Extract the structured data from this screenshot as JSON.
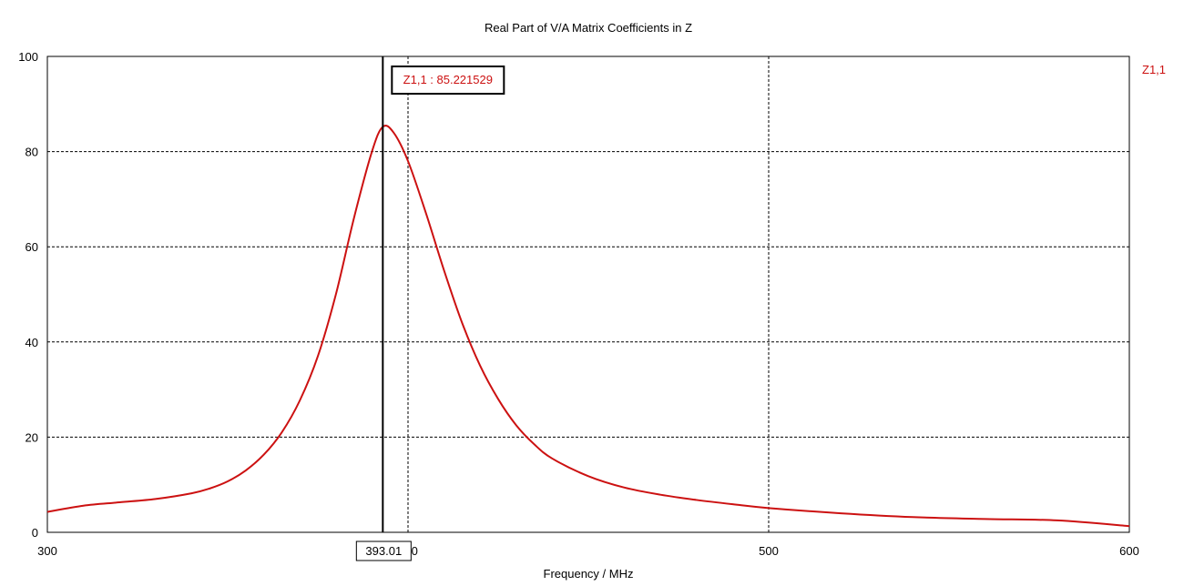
{
  "chart_data": {
    "type": "line",
    "title": "Real Part of V/A Matrix Coefficients in Z",
    "xlabel": "Frequency / MHz",
    "ylabel": "",
    "xlim": [
      300,
      600
    ],
    "ylim": [
      0,
      100
    ],
    "x_ticks": [
      "300",
      "400",
      "500",
      "600"
    ],
    "y_ticks": [
      "0",
      "20",
      "40",
      "60",
      "80",
      "100"
    ],
    "grid": true,
    "legend_position": "right",
    "series": [
      {
        "name": "Z1,1",
        "color": "#cc1111",
        "x": [
          300,
          310,
          320,
          330,
          340,
          345,
          350,
          355,
          360,
          365,
          370,
          375,
          380,
          385,
          390,
          393,
          396,
          400,
          405,
          410,
          415,
          420,
          425,
          430,
          435,
          440,
          450,
          460,
          470,
          480,
          490,
          500,
          520,
          540,
          560,
          580,
          600
        ],
        "y": [
          4.3,
          5.6,
          6.3,
          7.0,
          8.2,
          9.2,
          10.7,
          13.0,
          16.3,
          21.0,
          27.7,
          37.0,
          50.0,
          66.0,
          80.0,
          85.2,
          84.0,
          78.0,
          67.0,
          55.0,
          44.0,
          35.0,
          28.0,
          22.5,
          18.5,
          15.5,
          11.8,
          9.4,
          7.9,
          6.8,
          5.9,
          5.1,
          4.0,
          3.2,
          2.8,
          2.5,
          1.3
        ]
      }
    ],
    "marker": {
      "x_label": "393.01",
      "x": 393.01,
      "readout": "Z1,1 : 85.221529",
      "y": 85.221529
    }
  }
}
